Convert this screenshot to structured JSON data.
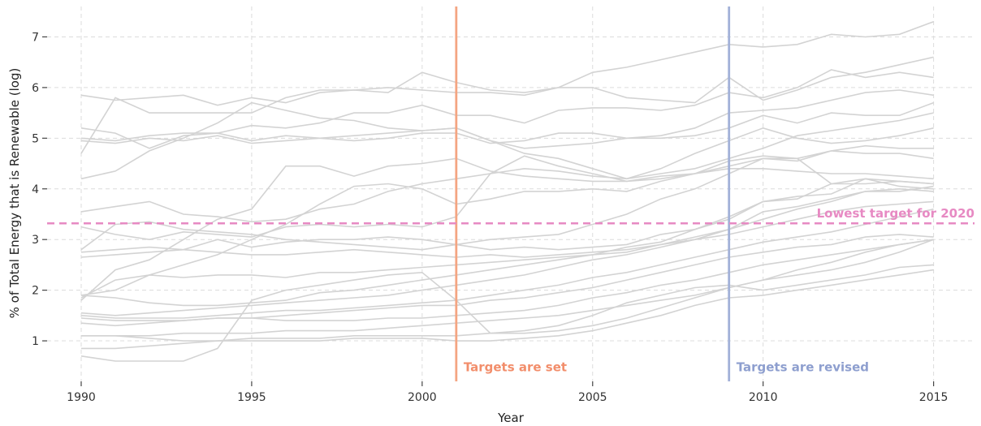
{
  "chart_data": {
    "type": "line",
    "title": "",
    "xlabel": "Year",
    "ylabel": "% of Total Energy that is Renewable (log)",
    "xlim": [
      1989,
      2016.2
    ],
    "ylim": [
      0.2,
      7.6
    ],
    "xticks": [
      1990,
      1995,
      2000,
      2005,
      2010,
      2015
    ],
    "yticks": [
      1,
      2,
      3,
      4,
      5,
      6,
      7
    ],
    "grid": true,
    "line_color": "#d3d3d3",
    "x": [
      1990,
      1991,
      1992,
      1993,
      1994,
      1995,
      1996,
      1997,
      1998,
      1999,
      2000,
      2001,
      2002,
      2003,
      2004,
      2005,
      2006,
      2007,
      2008,
      2009,
      2010,
      2011,
      2012,
      2013,
      2014,
      2015
    ],
    "series": [
      {
        "values": [
          5.85,
          5.75,
          5.8,
          5.85,
          5.65,
          5.8,
          5.7,
          5.9,
          5.95,
          5.9,
          6.3,
          6.1,
          5.95,
          5.9,
          6.0,
          6.3,
          6.4,
          6.55,
          6.7,
          6.85,
          6.8,
          6.85,
          7.05,
          7.0,
          7.05,
          7.3
        ]
      },
      {
        "values": [
          4.7,
          5.8,
          5.5,
          5.5,
          5.5,
          5.5,
          5.8,
          5.95,
          5.95,
          6.0,
          5.95,
          5.9,
          5.9,
          5.85,
          6.0,
          6.0,
          5.8,
          5.75,
          5.7,
          6.2,
          5.75,
          5.95,
          6.2,
          6.3,
          6.45,
          6.6
        ]
      },
      {
        "values": [
          5.2,
          5.1,
          4.8,
          5.05,
          5.1,
          5.25,
          5.2,
          5.3,
          5.5,
          5.5,
          5.65,
          5.45,
          5.45,
          5.3,
          5.55,
          5.6,
          5.6,
          5.55,
          5.65,
          5.9,
          5.8,
          6.0,
          6.35,
          6.2,
          6.3,
          6.2
        ]
      },
      {
        "values": [
          5.0,
          4.95,
          5.05,
          5.1,
          5.1,
          4.95,
          5.05,
          5.0,
          4.95,
          5.0,
          5.1,
          5.1,
          4.9,
          4.95,
          5.1,
          5.1,
          5.0,
          5.05,
          5.2,
          5.5,
          5.55,
          5.6,
          5.75,
          5.9,
          5.95,
          5.85
        ]
      },
      {
        "values": [
          4.95,
          4.9,
          5.0,
          4.95,
          5.05,
          4.9,
          4.95,
          5.0,
          5.05,
          5.1,
          5.15,
          5.2,
          4.95,
          4.8,
          4.85,
          4.9,
          5.0,
          5.0,
          5.05,
          5.2,
          5.45,
          5.3,
          5.5,
          5.45,
          5.45,
          5.7
        ]
      },
      {
        "values": [
          4.2,
          4.35,
          4.75,
          5.0,
          5.3,
          5.7,
          5.55,
          5.4,
          5.35,
          5.2,
          5.15,
          5.2,
          4.95,
          4.7,
          4.6,
          4.4,
          4.2,
          4.3,
          4.4,
          4.6,
          4.8,
          5.05,
          5.15,
          5.25,
          5.35,
          5.5
        ]
      },
      {
        "values": [
          3.55,
          3.65,
          3.75,
          3.5,
          3.45,
          3.35,
          3.4,
          3.6,
          3.7,
          3.95,
          4.1,
          4.2,
          4.3,
          4.4,
          4.35,
          4.25,
          4.2,
          4.4,
          4.7,
          4.95,
          5.2,
          5.0,
          4.9,
          4.95,
          5.05,
          5.2
        ]
      },
      {
        "values": [
          3.25,
          3.1,
          3.0,
          3.15,
          3.1,
          3.05,
          3.25,
          3.3,
          3.25,
          3.3,
          3.25,
          3.45,
          4.3,
          4.65,
          4.45,
          4.3,
          4.15,
          4.25,
          4.3,
          4.45,
          4.6,
          4.55,
          4.75,
          4.85,
          4.8,
          4.8
        ]
      },
      {
        "values": [
          2.8,
          3.3,
          3.35,
          3.2,
          3.15,
          3.1,
          3.0,
          2.95,
          2.9,
          2.85,
          2.8,
          2.9,
          3.0,
          3.05,
          3.1,
          3.3,
          3.5,
          3.8,
          4.0,
          4.3,
          4.6,
          4.6,
          4.75,
          4.7,
          4.7,
          4.6
        ]
      },
      {
        "values": [
          1.8,
          2.4,
          2.6,
          3.0,
          3.4,
          3.6,
          4.45,
          4.45,
          4.25,
          4.45,
          4.5,
          4.6,
          4.35,
          4.25,
          4.2,
          4.15,
          4.15,
          4.2,
          4.3,
          4.4,
          4.4,
          4.35,
          4.3,
          4.3,
          4.25,
          4.2
        ]
      },
      {
        "values": [
          2.65,
          2.7,
          2.75,
          2.8,
          3.0,
          2.85,
          2.95,
          3.0,
          3.0,
          3.05,
          3.0,
          2.9,
          2.8,
          2.85,
          2.8,
          2.85,
          2.9,
          3.1,
          3.2,
          3.4,
          3.75,
          3.8,
          4.1,
          4.1,
          4.15,
          4.1
        ]
      },
      {
        "values": [
          1.9,
          2.0,
          2.3,
          2.5,
          2.7,
          3.0,
          3.3,
          3.7,
          4.05,
          4.1,
          4.0,
          3.7,
          3.8,
          3.95,
          3.95,
          4.0,
          3.95,
          4.15,
          4.3,
          4.55,
          4.65,
          4.6,
          4.1,
          4.2,
          4.05,
          4.0
        ]
      },
      {
        "values": [
          1.85,
          2.2,
          2.3,
          2.25,
          2.3,
          2.3,
          2.25,
          2.35,
          2.35,
          2.4,
          2.45,
          2.5,
          2.55,
          2.6,
          2.65,
          2.7,
          2.85,
          2.95,
          3.2,
          3.45,
          3.75,
          3.85,
          3.9,
          4.2,
          4.15,
          4.1
        ]
      },
      {
        "values": [
          2.75,
          2.8,
          2.85,
          2.8,
          2.75,
          2.7,
          2.7,
          2.75,
          2.8,
          2.75,
          2.7,
          2.65,
          2.7,
          2.65,
          2.7,
          2.75,
          2.8,
          2.9,
          3.0,
          3.2,
          3.55,
          3.65,
          3.8,
          3.95,
          3.95,
          4.05
        ]
      },
      {
        "values": [
          1.9,
          1.85,
          1.75,
          1.7,
          1.7,
          1.75,
          1.8,
          1.95,
          2.0,
          2.1,
          2.2,
          2.3,
          2.4,
          2.5,
          2.6,
          2.7,
          2.75,
          2.9,
          3.05,
          3.2,
          3.4,
          3.6,
          3.75,
          3.95,
          4.0,
          3.95
        ]
      },
      {
        "values": [
          1.55,
          1.5,
          1.55,
          1.6,
          1.65,
          1.7,
          1.75,
          1.8,
          1.85,
          1.9,
          2.0,
          2.1,
          2.2,
          2.3,
          2.45,
          2.6,
          2.7,
          2.85,
          3.0,
          3.1,
          3.25,
          3.4,
          3.55,
          3.65,
          3.7,
          3.75
        ]
      },
      {
        "values": [
          1.5,
          1.45,
          1.45,
          1.45,
          1.5,
          1.55,
          1.6,
          1.6,
          1.65,
          1.7,
          1.75,
          1.8,
          1.9,
          2.0,
          2.1,
          2.25,
          2.35,
          2.5,
          2.65,
          2.8,
          2.95,
          3.05,
          3.15,
          3.3,
          3.45,
          3.6
        ]
      },
      {
        "values": [
          1.45,
          1.4,
          1.4,
          1.4,
          1.45,
          1.45,
          1.5,
          1.55,
          1.6,
          1.65,
          1.7,
          1.7,
          1.8,
          1.85,
          1.95,
          2.05,
          2.2,
          2.35,
          2.5,
          2.65,
          2.75,
          2.85,
          2.9,
          3.05,
          3.1,
          3.05
        ]
      },
      {
        "values": [
          1.35,
          1.3,
          1.35,
          1.4,
          1.45,
          1.45,
          1.4,
          1.4,
          1.4,
          1.45,
          1.45,
          1.5,
          1.55,
          1.6,
          1.7,
          1.85,
          1.95,
          2.1,
          2.2,
          2.35,
          2.5,
          2.6,
          2.7,
          2.8,
          2.9,
          3.0
        ]
      },
      {
        "values": [
          1.1,
          1.1,
          1.1,
          1.15,
          1.15,
          1.15,
          1.2,
          1.2,
          1.2,
          1.25,
          1.3,
          1.35,
          1.4,
          1.45,
          1.5,
          1.6,
          1.7,
          1.8,
          1.9,
          2.05,
          2.2,
          2.3,
          2.4,
          2.55,
          2.75,
          3.0
        ]
      },
      {
        "values": [
          0.7,
          0.6,
          0.6,
          0.6,
          0.85,
          1.8,
          2.0,
          2.1,
          2.2,
          2.3,
          2.35,
          1.8,
          1.15,
          1.15,
          1.2,
          1.3,
          1.45,
          1.65,
          1.85,
          2.05,
          2.2,
          2.4,
          2.55,
          2.75,
          2.9,
          3.0
        ]
      },
      {
        "values": [
          0.85,
          0.85,
          0.9,
          0.95,
          1.0,
          1.05,
          1.05,
          1.05,
          1.1,
          1.1,
          1.1,
          1.1,
          1.15,
          1.2,
          1.3,
          1.5,
          1.75,
          1.9,
          2.05,
          2.1,
          2.0,
          2.1,
          2.2,
          2.3,
          2.45,
          2.5
        ]
      },
      {
        "values": [
          1.1,
          1.1,
          1.05,
          1.0,
          1.0,
          1.0,
          1.0,
          1.0,
          1.05,
          1.05,
          1.05,
          1.0,
          1.0,
          1.05,
          1.1,
          1.2,
          1.35,
          1.5,
          1.7,
          1.85,
          1.9,
          2.0,
          2.1,
          2.2,
          2.3,
          2.4
        ]
      }
    ],
    "reference_lines": [
      {
        "orientation": "vertical",
        "x": 2001,
        "color": "#f4a582",
        "label": "Targets are set",
        "label_color": "#f28e6b"
      },
      {
        "orientation": "vertical",
        "x": 2009,
        "color": "#a2b1d8",
        "label": "Targets are revised",
        "label_color": "#8e9fcf"
      },
      {
        "orientation": "horizontal",
        "y": 3.32,
        "color": "#e78ac3",
        "label": "Lowest target for 2020",
        "label_color": "#e78ac3",
        "dashed": true
      }
    ]
  }
}
